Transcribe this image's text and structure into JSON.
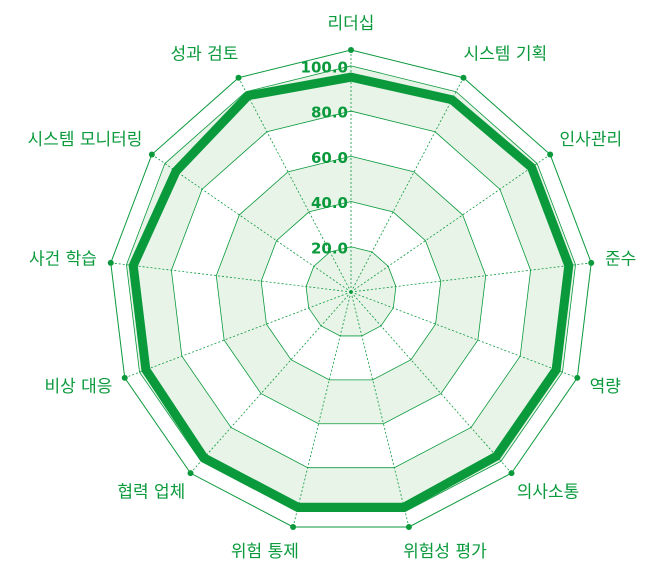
{
  "chart_data": {
    "type": "radar",
    "categories": [
      "리더십",
      "시스템 기획",
      "인사관리",
      "준수",
      "역량",
      "의사소통",
      "위험성 평가",
      "위험 통제",
      "협력 업체",
      "비상 대응",
      "사건 학습",
      "시스템 모니터링",
      "성과 검토"
    ],
    "series": [
      {
        "color": "#0a9a3c",
        "values": [
          95,
          96,
          97,
          97,
          97,
          97,
          98,
          98,
          98,
          97,
          97,
          94,
          98
        ]
      }
    ],
    "ylim": [
      0,
      107
    ],
    "yticks": [
      {
        "value": 20,
        "label": "20.0"
      },
      {
        "value": 40,
        "label": "40.0"
      },
      {
        "value": 60,
        "label": "60.0"
      },
      {
        "value": 80,
        "label": "80.0"
      },
      {
        "value": 100,
        "label": "100.0"
      }
    ],
    "grid": true
  }
}
